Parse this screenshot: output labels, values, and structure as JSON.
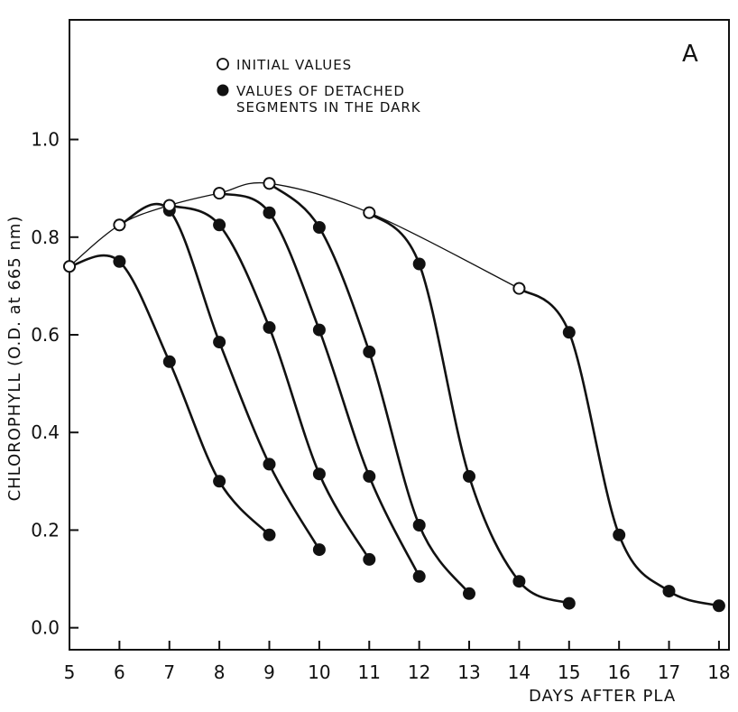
{
  "chart_data": {
    "type": "line",
    "panel_label": "A",
    "xlabel": "DAYS AFTER PLA",
    "ylabel": "CHLOROPHYLL (O.D. at 665 nm)",
    "xlim": [
      5,
      18.2
    ],
    "ylim": [
      -0.045,
      1.245
    ],
    "x_ticks": [
      5,
      6,
      7,
      8,
      9,
      10,
      11,
      12,
      13,
      14,
      15,
      16,
      17,
      18
    ],
    "x_tick_labels": [
      "5",
      "6",
      "7",
      "8",
      "9",
      "10",
      "11",
      "12",
      "13",
      "14",
      "15",
      "16",
      "17",
      "18"
    ],
    "y_ticks": [
      0.0,
      0.2,
      0.4,
      0.6,
      0.8,
      1.0
    ],
    "y_tick_labels": [
      "0.0",
      "0.2",
      "0.4",
      "0.6",
      "0.8",
      "1.0"
    ],
    "grid": false,
    "legend_placement": "top-center",
    "legend": [
      {
        "marker": "open-circle",
        "lines": [
          "INITIAL VALUES"
        ]
      },
      {
        "marker": "filled-circle",
        "lines": [
          "VALUES OF DETACHED",
          "SEGMENTS IN THE DARK"
        ]
      }
    ],
    "series": [
      {
        "marker": "open",
        "x": [
          5,
          6,
          7,
          8,
          9,
          11,
          14
        ],
        "y": [
          0.74,
          0.825,
          0.865,
          0.89,
          0.91,
          0.85,
          0.695
        ]
      },
      {
        "marker": "filled",
        "x": [
          5,
          6,
          7,
          8,
          9
        ],
        "y": [
          0.74,
          0.75,
          0.545,
          0.3,
          0.19
        ]
      },
      {
        "marker": "filled",
        "x": [
          6,
          7,
          8,
          9,
          10
        ],
        "y": [
          0.825,
          0.855,
          0.585,
          0.335,
          0.16
        ]
      },
      {
        "marker": "filled",
        "x": [
          7,
          8,
          9,
          10,
          11
        ],
        "y": [
          0.865,
          0.825,
          0.615,
          0.315,
          0.14
        ]
      },
      {
        "marker": "filled",
        "x": [
          8,
          9,
          10,
          11,
          12
        ],
        "y": [
          0.89,
          0.85,
          0.61,
          0.31,
          0.105
        ]
      },
      {
        "marker": "filled",
        "x": [
          9,
          10,
          11,
          12,
          13
        ],
        "y": [
          0.91,
          0.82,
          0.565,
          0.21,
          0.07
        ]
      },
      {
        "marker": "filled",
        "x": [
          11,
          12,
          13,
          14,
          15
        ],
        "y": [
          0.85,
          0.745,
          0.31,
          0.095,
          0.05
        ]
      },
      {
        "marker": "filled",
        "x": [
          14,
          15,
          16,
          17,
          18
        ],
        "y": [
          0.695,
          0.605,
          0.19,
          0.075,
          0.045
        ]
      }
    ]
  }
}
